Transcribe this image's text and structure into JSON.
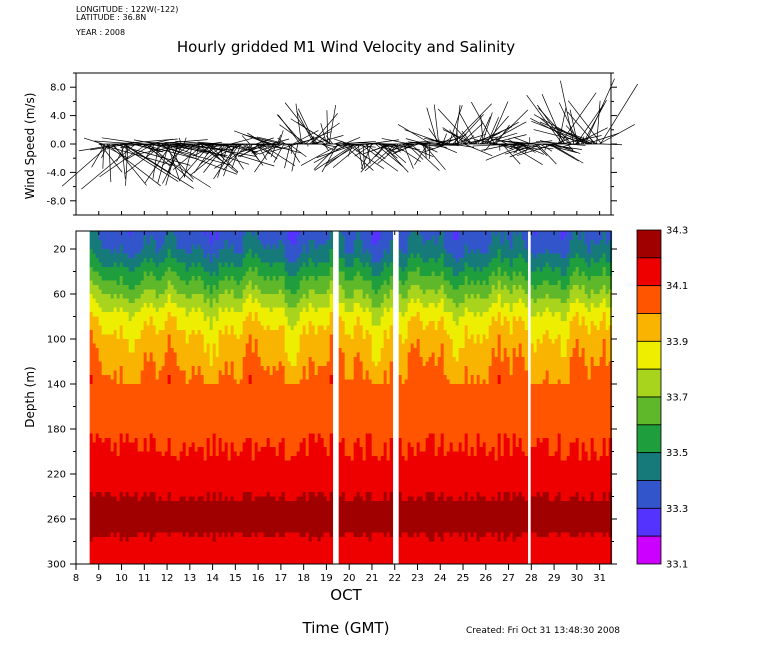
{
  "header": {
    "longitude": "LONGITUDE : 122W(-122)",
    "latitude": "LATITUDE : 36.8N",
    "year": "YEAR : 2008"
  },
  "title": "Hourly gridded M1 Wind Velocity and Salinity",
  "footer": {
    "xlabel": "Time (GMT)",
    "created": "Created: Fri Oct 31 13:48:30 2008"
  },
  "colors": {
    "palette": [
      "#cc00ff",
      "#5533ff",
      "#3355cc",
      "#177a7a",
      "#1e9e3c",
      "#5eb82a",
      "#a8d41e",
      "#eeee00",
      "#f8b400",
      "#ff5500",
      "#ee0000",
      "#a00000"
    ]
  },
  "chart_data": [
    {
      "type": "vector",
      "title": "Wind Velocity",
      "ylabel": "Wind Speed (m/s)",
      "ylim": [
        -10,
        10
      ],
      "yticks": [
        "8.0",
        "4.0",
        "0.0",
        "-4.0",
        "-8.0"
      ],
      "xlim": [
        8,
        31.5
      ],
      "vector_groups": [
        {
          "start_day": 9.0,
          "end_day": 13.8,
          "u": [
            -4,
            6
          ],
          "v": [
            -7,
            1
          ]
        },
        {
          "start_day": 13.8,
          "end_day": 15.3,
          "u": [
            -3,
            3
          ],
          "v": [
            -5,
            1
          ]
        },
        {
          "start_day": 15.3,
          "end_day": 17.8,
          "u": [
            -3,
            3
          ],
          "v": [
            -4,
            2
          ]
        },
        {
          "start_day": 17.8,
          "end_day": 19.5,
          "u": [
            -3,
            3
          ],
          "v": [
            -1,
            6
          ]
        },
        {
          "start_day": 19.5,
          "end_day": 23.6,
          "u": [
            -3,
            3
          ],
          "v": [
            -4,
            1
          ]
        },
        {
          "start_day": 23.6,
          "end_day": 26.5,
          "u": [
            -3,
            3
          ],
          "v": [
            -2,
            6
          ]
        },
        {
          "start_day": 26.5,
          "end_day": 29.2,
          "u": [
            -3,
            3
          ],
          "v": [
            -3,
            1
          ]
        },
        {
          "start_day": 29.2,
          "end_day": 31.2,
          "u": [
            -5,
            3
          ],
          "v": [
            -1,
            10
          ]
        }
      ]
    },
    {
      "type": "heatmap",
      "title": "Salinity",
      "ylabel": "Depth (m)",
      "xlabel": "OCT",
      "ylim": [
        300,
        4
      ],
      "yticks": [
        20,
        60,
        100,
        140,
        180,
        220,
        260,
        300
      ],
      "xlim": [
        8,
        31.5
      ],
      "xticks": [
        8,
        9,
        10,
        11,
        12,
        13,
        14,
        15,
        16,
        17,
        18,
        19,
        20,
        21,
        22,
        23,
        24,
        25,
        26,
        27,
        28,
        29,
        30,
        31
      ],
      "data_range_days": [
        8.6,
        31.4
      ],
      "gaps_days": [
        [
          19.2,
          19.45
        ],
        [
          21.9,
          22.15
        ],
        [
          27.78,
          27.92
        ]
      ],
      "colorbar": {
        "levels": [
          33.1,
          33.2,
          33.3,
          33.4,
          33.5,
          33.6,
          33.7,
          33.8,
          33.9,
          34.0,
          34.1,
          34.2,
          34.3
        ],
        "labels": [
          "34.3",
          "34.1",
          "33.9",
          "33.7",
          "33.5",
          "33.3",
          "33.1"
        ]
      },
      "salinity_profile": [
        {
          "depth": 4,
          "salinity": 33.35
        },
        {
          "depth": 20,
          "salinity": 33.4
        },
        {
          "depth": 40,
          "salinity": 33.55
        },
        {
          "depth": 60,
          "salinity": 33.7
        },
        {
          "depth": 80,
          "salinity": 33.85
        },
        {
          "depth": 100,
          "salinity": 33.93
        },
        {
          "depth": 120,
          "salinity": 33.98
        },
        {
          "depth": 140,
          "salinity": 34.03
        },
        {
          "depth": 180,
          "salinity": 34.08
        },
        {
          "depth": 220,
          "salinity": 34.13
        },
        {
          "depth": 240,
          "salinity": 34.2
        },
        {
          "depth": 260,
          "salinity": 34.25
        },
        {
          "depth": 280,
          "salinity": 34.18
        },
        {
          "depth": 300,
          "salinity": 34.15
        }
      ]
    }
  ]
}
